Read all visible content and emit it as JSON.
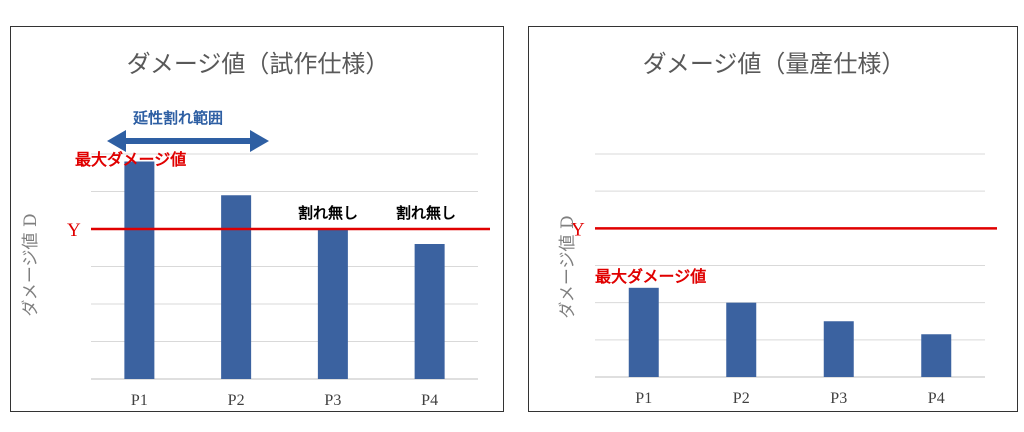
{
  "chart_data": [
    {
      "type": "bar",
      "title": "ダメージ値（試作仕様）",
      "ylabel": "ダメージ値 D",
      "categories": [
        "P1",
        "P2",
        "P3",
        "P4"
      ],
      "values": [
        5.8,
        4.9,
        4.0,
        3.6
      ],
      "ylim": [
        0,
        6
      ],
      "grid": true,
      "threshold": {
        "label": "Y",
        "value": 4.0,
        "color": "#e00000"
      },
      "annotations": {
        "max_damage": "最大ダメージ値",
        "ductile_range": "延性割れ範囲",
        "no_crack_p3": "割れ無し",
        "no_crack_p4": "割れ無し"
      },
      "bar_color": "#3b62a0"
    },
    {
      "type": "bar",
      "title": "ダメージ値（量産仕様）",
      "ylabel": "ダメージ値 D",
      "categories": [
        "P1",
        "P2",
        "P3",
        "P4"
      ],
      "values": [
        2.4,
        2.0,
        1.5,
        1.15
      ],
      "ylim": [
        0,
        6
      ],
      "grid": true,
      "threshold": {
        "label": "Y",
        "value": 4.0,
        "color": "#e00000"
      },
      "annotations": {
        "max_damage": "最大ダメージ値"
      },
      "bar_color": "#3b62a0"
    }
  ]
}
